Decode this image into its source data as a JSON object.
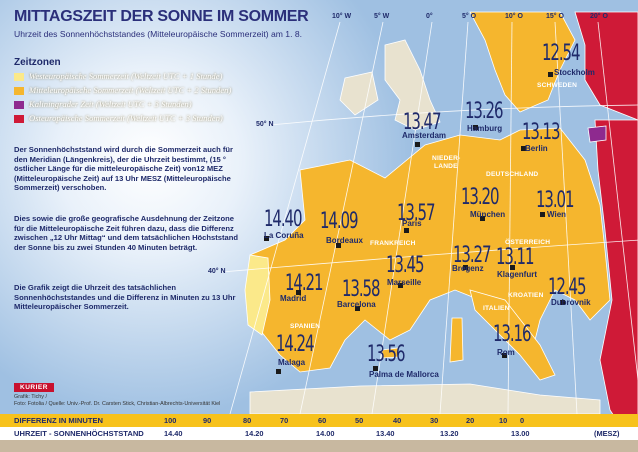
{
  "header": {
    "title": "MITTAGSZEIT DER SONNE IM SOMMER",
    "subtitle": "Uhrzeit des Sonnenhöchststandes (Mitteleuropäische Sommerzeit) am 1. 8."
  },
  "legend": {
    "heading": "Zeitzonen",
    "items": [
      {
        "label": "Westeuropäische Sommerzeit (Weltzeit UTC + 1 Stunde)",
        "color": "#fbe98a"
      },
      {
        "label": "Mitteleuropäische Sommerzeit (Weltzeit UTC + 2 Stunden)",
        "color": "#f5b62e"
      },
      {
        "label": "Kaliningrader Zeit (Weltzeit UTC + 3 Stunden)",
        "color": "#8e2a8f"
      },
      {
        "label": "Osteuropäische Sommerzeit (Weltzeit UTC + 3 Stunden)",
        "color": "#cf1a37"
      }
    ]
  },
  "text": {
    "para1": "Der Sonnenhöchststand wird durch die Sommerzeit auch für den Meridian (Längenkreis), der die Uhrzeit bestimmt, (15 ° östlicher Länge für die mitteleuropäische Zeit) von12 MEZ (Mitteleuropäische Zeit) auf 13 Uhr MESZ (Mitteleuropäische Sommerzeit) verschoben.",
    "para2": "Dies sowie die große geografische Ausdehnung der Zeitzone für die Mitteleuropäische Zeit führen dazu, dass die Differenz zwischen „12 Uhr Mittag“ und dem tatsächlichen Höchststand der Sonne bis zu zwei Stunden 40 Minuten beträgt.",
    "para3": "Die Grafik zeigt die Uhrzeit des tatsächlichen Sonnenhöchststandes und die Differenz in Minuten zu 13 Uhr Mitteleuropäischer Sommerzeit."
  },
  "meridians": [
    "10° W",
    "5° W",
    "0°",
    "5° O",
    "10° O",
    "15° O",
    "20° O"
  ],
  "parallels": [
    "50° N",
    "40° N"
  ],
  "cities": [
    {
      "name": "Stockholm",
      "time": "12.54"
    },
    {
      "name": "Amsterdam",
      "time": "13.47"
    },
    {
      "name": "Hamburg",
      "time": "13.26"
    },
    {
      "name": "Berlin",
      "time": "13.13"
    },
    {
      "name": "La Coruña",
      "time": "14.40"
    },
    {
      "name": "Bordeaux",
      "time": "14.09"
    },
    {
      "name": "Paris",
      "time": "13.57"
    },
    {
      "name": "München",
      "time": "13.20"
    },
    {
      "name": "Wien",
      "time": "13.01"
    },
    {
      "name": "Bregenz",
      "time": "13.27"
    },
    {
      "name": "Klagenfurt",
      "time": "13.11"
    },
    {
      "name": "Marseille",
      "time": "13.45"
    },
    {
      "name": "Madrid",
      "time": "14.21"
    },
    {
      "name": "Barcelona",
      "time": "13.58"
    },
    {
      "name": "Dubrovnik",
      "time": "12.45"
    },
    {
      "name": "Rom",
      "time": "13.16"
    },
    {
      "name": "Malaga",
      "time": "14.24"
    },
    {
      "name": "Palma de Mallorca",
      "time": "13.56"
    }
  ],
  "countries": [
    "SCHWEDEN",
    "NIEDER-",
    "LANDE",
    "DEUTSCHLAND",
    "FRANKREICH",
    "ÖSTERREICH",
    "KROATIEN",
    "ITALIEN",
    "SPANIEN"
  ],
  "credits": {
    "logo": "KURIER",
    "line1": "Grafik: Tichy /",
    "line2": "Foto: Fotolia / Quelle: Univ.-Prof. Dr. Carsten Stick, Christian-Albrechts-Universität Kiel"
  },
  "scale": {
    "minutes_label": "DIFFERENZ IN MINUTEN",
    "minutes": [
      "100",
      "90",
      "80",
      "70",
      "60",
      "50",
      "40",
      "30",
      "20",
      "10",
      "0"
    ],
    "clock_label": "UHRZEIT - SONNENHÖCHSTSTAND",
    "clock": [
      "14.40",
      "14.20",
      "14.00",
      "13.40",
      "13.20",
      "13.00",
      "(MESZ)"
    ]
  },
  "colors": {
    "sea": "#cfe1f2",
    "cet": "#f5b62e",
    "wet": "#fbe98a",
    "eet": "#cf1a37",
    "kaliningrad": "#8e2a8f",
    "other_land": "#e8e2cf",
    "text": "#1f2a6a",
    "bar": "#f7c21c"
  }
}
